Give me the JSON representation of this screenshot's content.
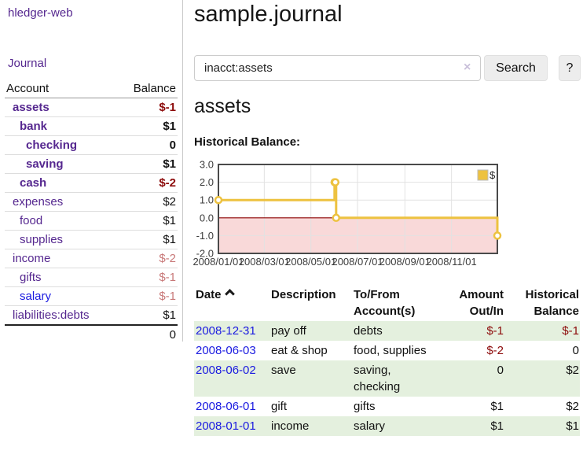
{
  "sidebar": {
    "brand": "hledger-web",
    "nav": {
      "journal": "Journal"
    },
    "accounts": {
      "col_account": "Account",
      "col_balance": "Balance",
      "rows": [
        {
          "label": "assets",
          "balance": "$-1"
        },
        {
          "label": "bank",
          "balance": "$1"
        },
        {
          "label": "checking",
          "balance": "0"
        },
        {
          "label": "saving",
          "balance": "$1"
        },
        {
          "label": "cash",
          "balance": "$-2"
        },
        {
          "label": "expenses",
          "balance": "$2"
        },
        {
          "label": "food",
          "balance": "$1"
        },
        {
          "label": "supplies",
          "balance": "$1"
        },
        {
          "label": "income",
          "balance": "$-2"
        },
        {
          "label": "gifts",
          "balance": "$-1"
        },
        {
          "label": "salary",
          "balance": "$-1"
        },
        {
          "label": "liabilities:debts",
          "balance": "$1"
        }
      ],
      "total": "0"
    }
  },
  "main": {
    "title": "sample.journal",
    "search": {
      "value": "inacct:assets",
      "clear": "×",
      "button": "Search",
      "help": "?"
    },
    "account_heading": "assets",
    "chart_title": "Historical Balance:",
    "register": {
      "headers": {
        "date": "Date",
        "description": "Description",
        "tofrom1": "To/From",
        "tofrom2": "Account(s)",
        "amount1": "Amount",
        "amount2": "Out/In",
        "hist1": "Historical",
        "hist2": "Balance"
      },
      "rows": [
        {
          "date": "2008-12-31",
          "description": "pay off",
          "accounts": [
            "debts"
          ],
          "amount": "$-1",
          "balance": "$-1"
        },
        {
          "date": "2008-06-03",
          "description": "eat & shop",
          "accounts": [
            "food, supplies"
          ],
          "amount": "$-2",
          "balance": "0"
        },
        {
          "date": "2008-06-02",
          "description": "save",
          "accounts": [
            "saving,",
            "checking"
          ],
          "amount": "0",
          "balance": "$2"
        },
        {
          "date": "2008-06-01",
          "description": "gift",
          "accounts": [
            "gifts"
          ],
          "amount": "$1",
          "balance": "$2"
        },
        {
          "date": "2008-01-01",
          "description": "income",
          "accounts": [
            "salary"
          ],
          "amount": "$1",
          "balance": "$1"
        }
      ]
    }
  },
  "chart_data": {
    "type": "line",
    "step": true,
    "title": "Historical Balance:",
    "x_range": [
      "2008-01-01",
      "2008-12-31"
    ],
    "ylim": [
      -2,
      3
    ],
    "yticks": [
      3,
      2,
      1,
      0,
      -1,
      -2
    ],
    "xticks": [
      "2008/01/01",
      "2008/03/01",
      "2008/05/01",
      "2008/07/01",
      "2008/09/01",
      "2008/11/01"
    ],
    "series": [
      {
        "name": "$",
        "color": "#edc240",
        "points": [
          [
            "2008-01-01",
            1
          ],
          [
            "2008-06-01",
            2
          ],
          [
            "2008-06-02",
            2
          ],
          [
            "2008-06-03",
            0
          ],
          [
            "2008-12-31",
            -1
          ]
        ]
      }
    ],
    "negative_region": true,
    "grid": true,
    "legend_position": "top-right"
  },
  "colors": {
    "link_purple": "#55278f",
    "link_blue": "#1a1ae0",
    "negative_strong": "#8c0a0a",
    "negative_faded": "#c87878",
    "row_stripe_green": "#e4f0de",
    "series_gold": "#edc240",
    "negative_region": "#f9d9d9",
    "zero_line": "#8b0000",
    "plot_border": "#4a4a4a"
  }
}
